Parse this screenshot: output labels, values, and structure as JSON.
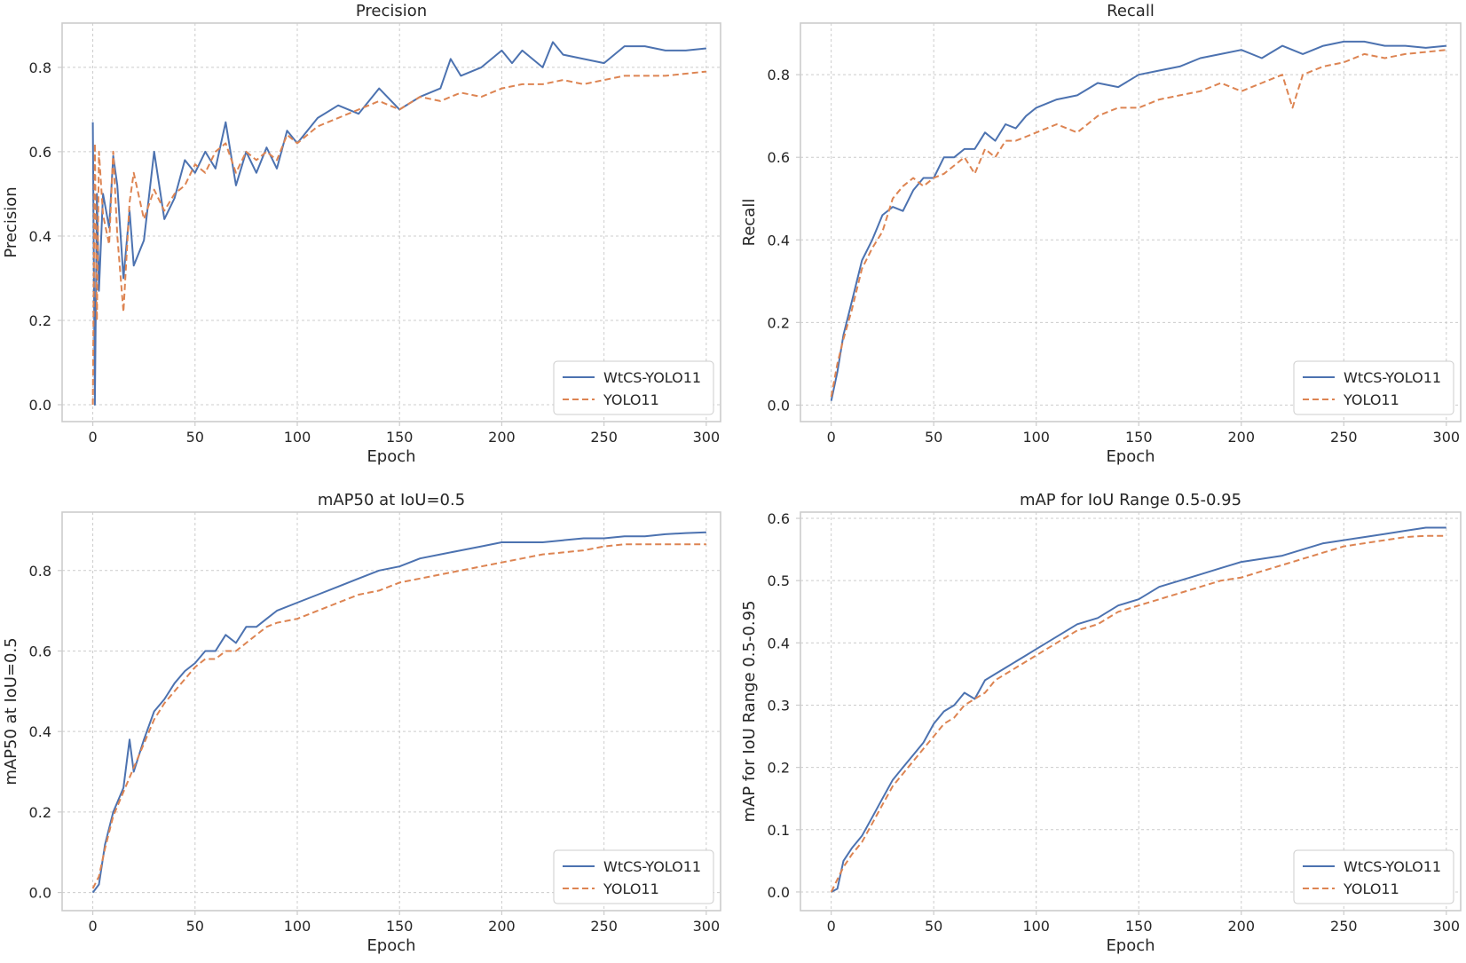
{
  "chart_data": [
    {
      "type": "line",
      "title": "Precision",
      "xlabel": "Epoch",
      "ylabel": "Precision",
      "xlim": [
        -15,
        307
      ],
      "ylim": [
        -0.04,
        0.905
      ],
      "xticks": [
        0,
        50,
        100,
        150,
        200,
        250,
        300
      ],
      "yticks": [
        0.0,
        0.2,
        0.4,
        0.6,
        0.8
      ],
      "grid": true,
      "legend_position": "bottom-right",
      "series": [
        {
          "name": "WtCS-YOLO11",
          "color": "#4c72b0",
          "style": "solid",
          "x": [
            0,
            1,
            2,
            3,
            5,
            8,
            10,
            12,
            15,
            18,
            20,
            25,
            30,
            35,
            40,
            45,
            50,
            55,
            60,
            65,
            70,
            75,
            80,
            85,
            90,
            95,
            100,
            110,
            120,
            130,
            140,
            150,
            160,
            170,
            175,
            180,
            190,
            200,
            205,
            210,
            220,
            225,
            230,
            240,
            250,
            260,
            270,
            280,
            290,
            300
          ],
          "y": [
            0.67,
            0.0,
            0.5,
            0.27,
            0.5,
            0.42,
            0.59,
            0.52,
            0.3,
            0.46,
            0.33,
            0.39,
            0.6,
            0.44,
            0.49,
            0.58,
            0.55,
            0.6,
            0.56,
            0.67,
            0.52,
            0.6,
            0.55,
            0.61,
            0.56,
            0.65,
            0.62,
            0.68,
            0.71,
            0.69,
            0.75,
            0.7,
            0.73,
            0.75,
            0.82,
            0.78,
            0.8,
            0.84,
            0.81,
            0.84,
            0.8,
            0.86,
            0.83,
            0.82,
            0.81,
            0.85,
            0.85,
            0.84,
            0.84,
            0.845
          ]
        },
        {
          "name": "YOLO11",
          "color": "#dd8452",
          "style": "dashed",
          "x": [
            0,
            1,
            2,
            3,
            5,
            8,
            10,
            12,
            15,
            18,
            20,
            25,
            30,
            35,
            40,
            45,
            50,
            55,
            60,
            65,
            70,
            75,
            80,
            85,
            90,
            95,
            100,
            110,
            120,
            130,
            140,
            150,
            160,
            170,
            180,
            190,
            200,
            210,
            220,
            230,
            240,
            250,
            260,
            270,
            280,
            290,
            300
          ],
          "y": [
            0.0,
            0.62,
            0.2,
            0.6,
            0.45,
            0.38,
            0.6,
            0.4,
            0.22,
            0.48,
            0.55,
            0.44,
            0.51,
            0.46,
            0.5,
            0.52,
            0.57,
            0.55,
            0.6,
            0.62,
            0.55,
            0.6,
            0.58,
            0.6,
            0.58,
            0.64,
            0.62,
            0.66,
            0.68,
            0.7,
            0.72,
            0.7,
            0.73,
            0.72,
            0.74,
            0.73,
            0.75,
            0.76,
            0.76,
            0.77,
            0.76,
            0.77,
            0.78,
            0.78,
            0.78,
            0.785,
            0.79
          ]
        }
      ]
    },
    {
      "type": "line",
      "title": "Recall",
      "xlabel": "Epoch",
      "ylabel": "Recall",
      "xlim": [
        -15,
        307
      ],
      "ylim": [
        -0.04,
        0.925
      ],
      "xticks": [
        0,
        50,
        100,
        150,
        200,
        250,
        300
      ],
      "yticks": [
        0.0,
        0.2,
        0.4,
        0.6,
        0.8
      ],
      "grid": true,
      "legend_position": "bottom-right",
      "series": [
        {
          "name": "WtCS-YOLO11",
          "color": "#4c72b0",
          "style": "solid",
          "x": [
            0,
            3,
            6,
            10,
            15,
            20,
            25,
            30,
            35,
            40,
            45,
            50,
            55,
            60,
            65,
            70,
            75,
            80,
            85,
            90,
            95,
            100,
            110,
            120,
            130,
            140,
            150,
            160,
            170,
            180,
            190,
            200,
            210,
            220,
            230,
            240,
            250,
            260,
            270,
            280,
            290,
            300
          ],
          "y": [
            0.01,
            0.08,
            0.17,
            0.25,
            0.35,
            0.4,
            0.46,
            0.48,
            0.47,
            0.52,
            0.55,
            0.55,
            0.6,
            0.6,
            0.62,
            0.62,
            0.66,
            0.64,
            0.68,
            0.67,
            0.7,
            0.72,
            0.74,
            0.75,
            0.78,
            0.77,
            0.8,
            0.81,
            0.82,
            0.84,
            0.85,
            0.86,
            0.84,
            0.87,
            0.85,
            0.87,
            0.88,
            0.88,
            0.87,
            0.87,
            0.865,
            0.87
          ]
        },
        {
          "name": "YOLO11",
          "color": "#dd8452",
          "style": "dashed",
          "x": [
            0,
            3,
            6,
            10,
            15,
            20,
            25,
            30,
            35,
            40,
            45,
            50,
            55,
            60,
            65,
            70,
            75,
            80,
            85,
            90,
            95,
            100,
            110,
            120,
            130,
            140,
            150,
            160,
            170,
            180,
            190,
            200,
            210,
            220,
            225,
            230,
            240,
            250,
            260,
            270,
            280,
            290,
            300
          ],
          "y": [
            0.02,
            0.1,
            0.16,
            0.23,
            0.33,
            0.38,
            0.42,
            0.5,
            0.53,
            0.55,
            0.53,
            0.55,
            0.56,
            0.58,
            0.6,
            0.56,
            0.62,
            0.6,
            0.64,
            0.64,
            0.65,
            0.66,
            0.68,
            0.66,
            0.7,
            0.72,
            0.72,
            0.74,
            0.75,
            0.76,
            0.78,
            0.76,
            0.78,
            0.8,
            0.72,
            0.8,
            0.82,
            0.83,
            0.85,
            0.84,
            0.85,
            0.855,
            0.86
          ]
        }
      ]
    },
    {
      "type": "line",
      "title": "mAP50 at IoU=0.5",
      "xlabel": "Epoch",
      "ylabel": "mAP50 at IoU=0.5",
      "xlim": [
        -15,
        307
      ],
      "ylim": [
        -0.045,
        0.945
      ],
      "xticks": [
        0,
        50,
        100,
        150,
        200,
        250,
        300
      ],
      "yticks": [
        0.0,
        0.2,
        0.4,
        0.6,
        0.8
      ],
      "grid": true,
      "legend_position": "bottom-right",
      "series": [
        {
          "name": "WtCS-YOLO11",
          "color": "#4c72b0",
          "style": "solid",
          "x": [
            0,
            3,
            6,
            10,
            15,
            18,
            20,
            25,
            30,
            35,
            40,
            45,
            50,
            55,
            60,
            65,
            70,
            75,
            80,
            85,
            90,
            100,
            110,
            120,
            130,
            140,
            150,
            160,
            170,
            180,
            190,
            200,
            210,
            220,
            230,
            240,
            250,
            260,
            270,
            280,
            290,
            300
          ],
          "y": [
            0.0,
            0.02,
            0.12,
            0.2,
            0.26,
            0.38,
            0.3,
            0.38,
            0.45,
            0.48,
            0.52,
            0.55,
            0.57,
            0.6,
            0.6,
            0.64,
            0.62,
            0.66,
            0.66,
            0.68,
            0.7,
            0.72,
            0.74,
            0.76,
            0.78,
            0.8,
            0.81,
            0.83,
            0.84,
            0.85,
            0.86,
            0.87,
            0.87,
            0.87,
            0.875,
            0.88,
            0.88,
            0.885,
            0.885,
            0.89,
            0.893,
            0.895
          ]
        },
        {
          "name": "YOLO11",
          "color": "#dd8452",
          "style": "dashed",
          "x": [
            0,
            3,
            6,
            10,
            15,
            20,
            25,
            30,
            35,
            40,
            45,
            50,
            55,
            60,
            65,
            70,
            75,
            80,
            85,
            90,
            100,
            110,
            120,
            130,
            140,
            150,
            160,
            170,
            180,
            190,
            200,
            210,
            220,
            230,
            240,
            250,
            260,
            270,
            280,
            290,
            300
          ],
          "y": [
            0.01,
            0.04,
            0.11,
            0.19,
            0.25,
            0.31,
            0.37,
            0.43,
            0.47,
            0.5,
            0.53,
            0.56,
            0.58,
            0.58,
            0.6,
            0.6,
            0.62,
            0.64,
            0.66,
            0.67,
            0.68,
            0.7,
            0.72,
            0.74,
            0.75,
            0.77,
            0.78,
            0.79,
            0.8,
            0.81,
            0.82,
            0.83,
            0.84,
            0.845,
            0.85,
            0.86,
            0.865,
            0.865,
            0.865,
            0.865,
            0.865
          ]
        }
      ]
    },
    {
      "type": "line",
      "title": "mAP for IoU Range 0.5-0.95",
      "xlabel": "Epoch",
      "ylabel": "mAP for IoU Range 0.5-0.95",
      "xlim": [
        -15,
        307
      ],
      "ylim": [
        -0.03,
        0.61
      ],
      "xticks": [
        0,
        50,
        100,
        150,
        200,
        250,
        300
      ],
      "yticks": [
        0.0,
        0.1,
        0.2,
        0.3,
        0.4,
        0.5,
        0.6
      ],
      "grid": true,
      "legend_position": "bottom-right",
      "series": [
        {
          "name": "WtCS-YOLO11",
          "color": "#4c72b0",
          "style": "solid",
          "x": [
            0,
            3,
            6,
            10,
            15,
            20,
            25,
            30,
            35,
            40,
            45,
            50,
            55,
            60,
            65,
            70,
            75,
            80,
            85,
            90,
            95,
            100,
            110,
            120,
            130,
            140,
            150,
            160,
            170,
            180,
            190,
            200,
            210,
            220,
            230,
            240,
            250,
            260,
            270,
            280,
            290,
            300
          ],
          "y": [
            0.0,
            0.005,
            0.05,
            0.07,
            0.09,
            0.12,
            0.15,
            0.18,
            0.2,
            0.22,
            0.24,
            0.27,
            0.29,
            0.3,
            0.32,
            0.31,
            0.34,
            0.35,
            0.36,
            0.37,
            0.38,
            0.39,
            0.41,
            0.43,
            0.44,
            0.46,
            0.47,
            0.49,
            0.5,
            0.51,
            0.52,
            0.53,
            0.535,
            0.54,
            0.55,
            0.56,
            0.565,
            0.57,
            0.575,
            0.58,
            0.585,
            0.585
          ]
        },
        {
          "name": "YOLO11",
          "color": "#dd8452",
          "style": "dashed",
          "x": [
            0,
            3,
            6,
            10,
            15,
            20,
            25,
            30,
            35,
            40,
            45,
            50,
            55,
            60,
            65,
            70,
            75,
            80,
            85,
            90,
            95,
            100,
            110,
            120,
            130,
            140,
            150,
            160,
            170,
            180,
            190,
            200,
            210,
            220,
            230,
            240,
            250,
            260,
            270,
            280,
            290,
            300
          ],
          "y": [
            0.0,
            0.02,
            0.04,
            0.06,
            0.08,
            0.11,
            0.14,
            0.17,
            0.19,
            0.21,
            0.23,
            0.25,
            0.27,
            0.28,
            0.3,
            0.31,
            0.32,
            0.34,
            0.35,
            0.36,
            0.37,
            0.38,
            0.4,
            0.42,
            0.43,
            0.45,
            0.46,
            0.47,
            0.48,
            0.49,
            0.5,
            0.505,
            0.515,
            0.525,
            0.535,
            0.545,
            0.555,
            0.56,
            0.565,
            0.57,
            0.572,
            0.572
          ]
        }
      ]
    }
  ]
}
